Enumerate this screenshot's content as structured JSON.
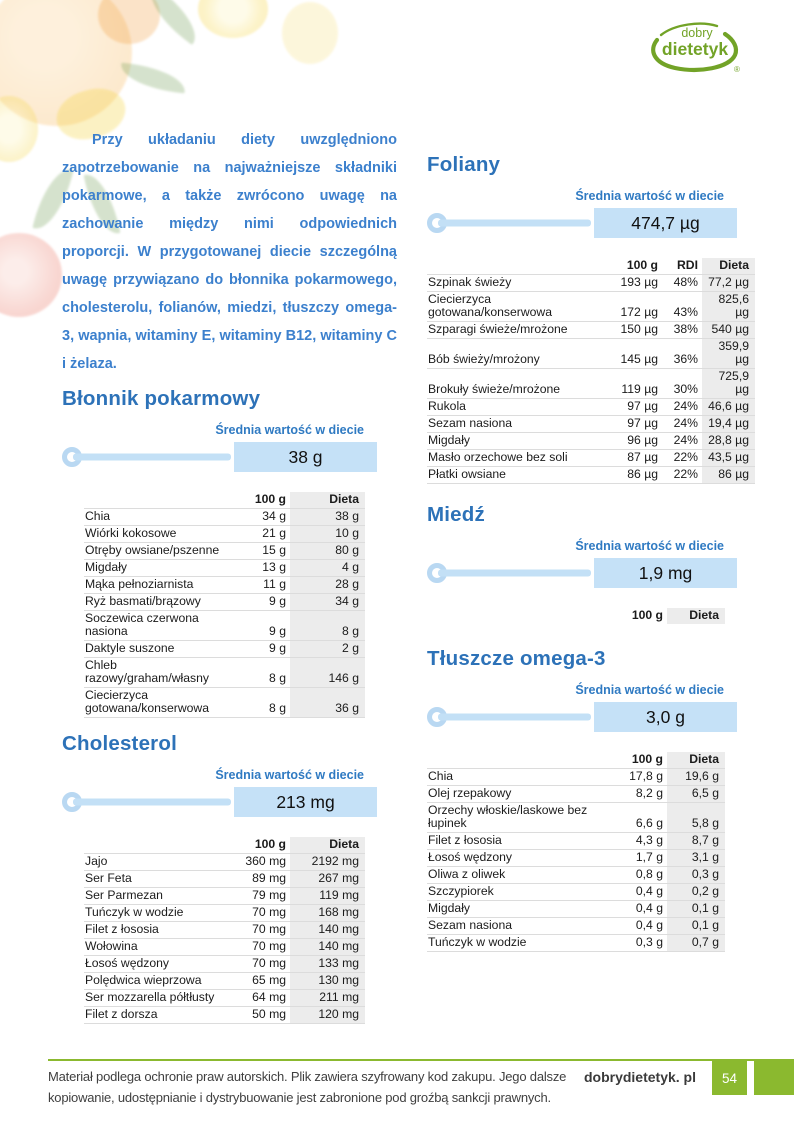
{
  "logo": {
    "word1": "dobry",
    "word2": "dietetyk",
    "registered": "®",
    "color": "#72a327"
  },
  "decorations": [
    "orange",
    "tangerine",
    "leaves",
    "lemon-slice",
    "lemon",
    "grapefruit"
  ],
  "intro": {
    "text": "Przy układaniu diety uwzględniono zapotrzebowanie na najważniejsze składniki pokarmowe, a także zwrócono uwagę na zachowanie między nimi odpowiednich proporcji. W przygotowanej diecie szczególną uwagę przywiązano do błonnika pokarmowego, cholesterolu, folianów, miedzi, tłuszczy omega-3, wapnia, witaminy E, witaminy B12, witaminy C i żelaza."
  },
  "sections": {
    "blonnik": {
      "title": "Błonnik pokarmowy",
      "avg_label": "Średnia wartość w diecie",
      "avg_value": "38 g",
      "columns": [
        "100 g",
        "Dieta"
      ],
      "rows": [
        [
          "Chia",
          "34 g",
          "38 g"
        ],
        [
          "Wiórki kokosowe",
          "21 g",
          "10 g"
        ],
        [
          "Otręby owsiane/pszenne",
          "15 g",
          "80 g"
        ],
        [
          "Migdały",
          "13 g",
          "4 g"
        ],
        [
          "Mąka pełnoziarnista",
          "11 g",
          "28 g"
        ],
        [
          "Ryż basmati/brązowy",
          "9 g",
          "34 g"
        ],
        [
          "Soczewica czerwona nasiona",
          "9 g",
          "8 g"
        ],
        [
          "Daktyle suszone",
          "9 g",
          "2 g"
        ],
        [
          "Chleb razowy/graham/własny",
          "8 g",
          "146 g"
        ],
        [
          "Ciecierzyca gotowana/konserwowa",
          "8 g",
          "36 g"
        ]
      ]
    },
    "cholesterol": {
      "title": "Cholesterol",
      "avg_label": "Średnia wartość w diecie",
      "avg_value": "213 mg",
      "columns": [
        "100 g",
        "Dieta"
      ],
      "rows": [
        [
          "Jajo",
          "360 mg",
          "2192 mg"
        ],
        [
          "Ser Feta",
          "89 mg",
          "267 mg"
        ],
        [
          "Ser Parmezan",
          "79 mg",
          "119 mg"
        ],
        [
          "Tuńczyk w wodzie",
          "70 mg",
          "168 mg"
        ],
        [
          "Filet z łososia",
          "70 mg",
          "140 mg"
        ],
        [
          "Wołowina",
          "70 mg",
          "140 mg"
        ],
        [
          "Łosoś wędzony",
          "70 mg",
          "133 mg"
        ],
        [
          "Polędwica wieprzowa",
          "65 mg",
          "130 mg"
        ],
        [
          "Ser mozzarella półtłusty",
          "64 mg",
          "211 mg"
        ],
        [
          "Filet z dorsza",
          "50 mg",
          "120 mg"
        ]
      ]
    },
    "foliany": {
      "title": "Foliany",
      "avg_label": "Średnia wartość w diecie",
      "avg_value": "474,7 µg",
      "columns": [
        "100 g",
        "RDI",
        "Dieta"
      ],
      "rows": [
        [
          "Szpinak świeży",
          "193 µg",
          "48%",
          "77,2 µg"
        ],
        [
          "Ciecierzyca gotowana/konserwowa",
          "172 µg",
          "43%",
          "825,6 µg"
        ],
        [
          "Szparagi świeże/mrożone",
          "150 µg",
          "38%",
          "540 µg"
        ],
        [
          "Bób świeży/mrożony",
          "145 µg",
          "36%",
          "359,9 µg"
        ],
        [
          "Brokuły świeże/mrożone",
          "119 µg",
          "30%",
          "725,9 µg"
        ],
        [
          "Rukola",
          "97 µg",
          "24%",
          "46,6 µg"
        ],
        [
          "Sezam nasiona",
          "97 µg",
          "24%",
          "19,4 µg"
        ],
        [
          "Migdały",
          "96 µg",
          "24%",
          "28,8 µg"
        ],
        [
          "Masło orzechowe bez soli",
          "87 µg",
          "22%",
          "43,5 µg"
        ],
        [
          "Płatki owsiane",
          "86 µg",
          "22%",
          "86 µg"
        ]
      ]
    },
    "miedz": {
      "title": "Miedź",
      "avg_label": "Średnia wartość w diecie",
      "avg_value": "1,9 mg",
      "columns": [
        "100 g",
        "Dieta"
      ],
      "rows": []
    },
    "omega3": {
      "title": "Tłuszcze omega-3",
      "avg_label": "Średnia wartość w diecie",
      "avg_value": "3,0 g",
      "columns": [
        "100 g",
        "Dieta"
      ],
      "rows": [
        [
          "Chia",
          "17,8 g",
          "19,6 g"
        ],
        [
          "Olej rzepakowy",
          "8,2 g",
          "6,5 g"
        ],
        [
          "Orzechy włoskie/laskowe bez łupinek",
          "6,6 g",
          "5,8 g"
        ],
        [
          "Filet z łososia",
          "4,3 g",
          "8,7 g"
        ],
        [
          "Łosoś wędzony",
          "1,7 g",
          "3,1 g"
        ],
        [
          "Oliwa z oliwek",
          "0,8 g",
          "0,3 g"
        ],
        [
          "Szczypiorek",
          "0,4 g",
          "0,2 g"
        ],
        [
          "Migdały",
          "0,4 g",
          "0,1 g"
        ],
        [
          "Sezam nasiona",
          "0,4 g",
          "0,1 g"
        ],
        [
          "Tuńczyk w wodzie",
          "0,3 g",
          "0,7 g"
        ]
      ]
    }
  },
  "footer": {
    "disclaimer_lines": [
      "Materiał podlega ochronie praw autorskich. Plik zawiera szyfrowany kod zakupu. Jego dalsze",
      "kopiowanie, udostępnianie i dystrybuowanie jest zabronione pod groźbą sankcji prawnych."
    ],
    "brand": "dobrydietetyk. pl",
    "page_number": "54"
  },
  "colors": {
    "heading_blue": "#2d72b8",
    "intro_blue": "#3c80cd",
    "value_box_blue": "#c5e1f7",
    "dieta_column_gray": "#ececec",
    "footer_green": "#8bb92f",
    "logo_green": "#72a327"
  }
}
